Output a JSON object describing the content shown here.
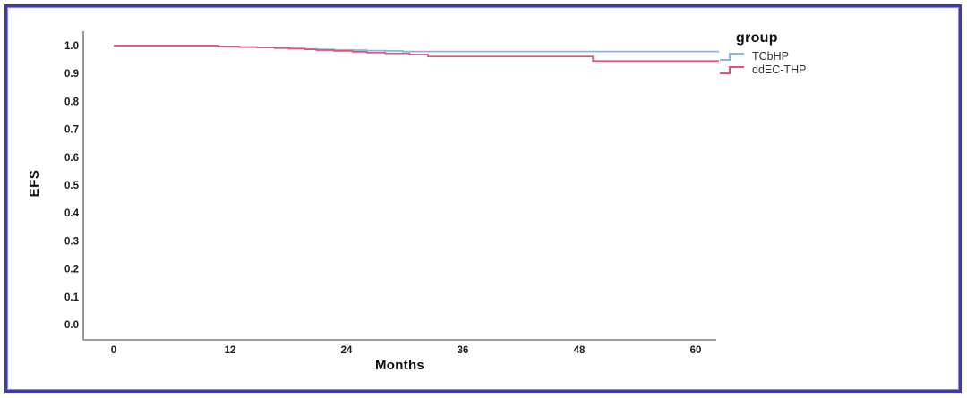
{
  "window": {
    "border_color": "#3b3bb2",
    "background": "#ffffff"
  },
  "chart_data": {
    "type": "line",
    "subtype": "kaplan-meier-step-survival",
    "title": "",
    "xlabel": "Months",
    "ylabel": "EFS",
    "xlim": [
      -3,
      62.5
    ],
    "ylim": [
      0.0,
      1.0
    ],
    "grid": false,
    "legend_position": "top-right",
    "legend_title": "group",
    "x_ticks": [
      0,
      12,
      24,
      36,
      48,
      60
    ],
    "y_ticks": [
      0.0,
      0.1,
      0.2,
      0.3,
      0.4,
      0.5,
      0.6,
      0.7,
      0.8,
      0.9,
      1.0
    ],
    "x_tick_labels": [
      "0",
      "12",
      "24",
      "36",
      "48",
      "60"
    ],
    "y_tick_labels": [
      "0.0",
      "0.1",
      "0.2",
      "0.3",
      "0.4",
      "0.5",
      "0.6",
      "0.7",
      "0.8",
      "0.9",
      "1.0"
    ],
    "axis_color": "#8f8f8f",
    "tick_label_color": "#1a1a1a",
    "series": [
      {
        "name": "TCbHP",
        "color": "#8cb4e4",
        "points": [
          [
            0,
            1.0
          ],
          [
            10.8,
            0.997
          ],
          [
            12.9,
            0.995
          ],
          [
            14.8,
            0.993
          ],
          [
            16.6,
            0.991
          ],
          [
            18.1,
            0.99
          ],
          [
            19.7,
            0.988
          ],
          [
            20.9,
            0.987
          ],
          [
            22.7,
            0.985
          ],
          [
            24.6,
            0.984
          ],
          [
            26.1,
            0.982
          ],
          [
            28.0,
            0.981
          ],
          [
            29.8,
            0.979
          ],
          [
            62.4,
            0.979
          ]
        ]
      },
      {
        "name": "ddEC-THP",
        "color": "#e25278",
        "points": [
          [
            0,
            1.0
          ],
          [
            10.8,
            0.997
          ],
          [
            12.9,
            0.995
          ],
          [
            14.8,
            0.993
          ],
          [
            16.6,
            0.991
          ],
          [
            18.1,
            0.989
          ],
          [
            19.7,
            0.987
          ],
          [
            20.9,
            0.984
          ],
          [
            22.7,
            0.981
          ],
          [
            24.6,
            0.978
          ],
          [
            26.1,
            0.975
          ],
          [
            28.0,
            0.972
          ],
          [
            30.5,
            0.968
          ],
          [
            32.4,
            0.961
          ],
          [
            49.4,
            0.945
          ],
          [
            62.4,
            0.945
          ]
        ]
      }
    ]
  },
  "labels": {
    "y_axis_title": "EFS",
    "x_axis_title": "Months",
    "legend_title": "group"
  }
}
